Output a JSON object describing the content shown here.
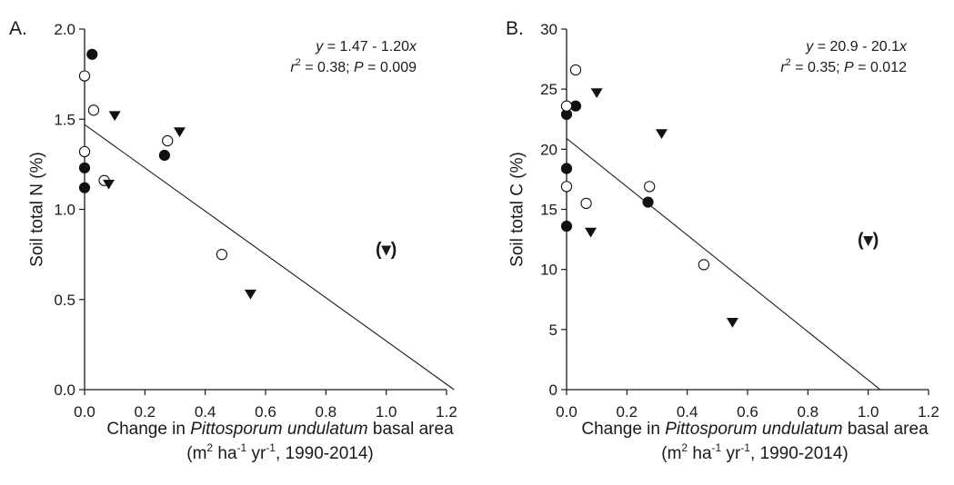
{
  "chart_data": [
    {
      "type": "scatter",
      "panel_label": "A.",
      "ylabel": "Soil total N (%)",
      "xlabel_parts": [
        {
          "text": "Change in ",
          "style": "normal"
        },
        {
          "text": "Pittosporum undulatum",
          "style": "italic"
        },
        {
          "text": " basal area",
          "style": "normal"
        }
      ],
      "xlabel_line2": {
        "pre": "(m",
        "sup1": "2",
        "mid1": " ha",
        "sup2": "-1",
        "mid2": " yr",
        "sup3": "-1",
        "post": ", 1990-2014)"
      },
      "xlim": [
        0,
        1.2
      ],
      "ylim": [
        0,
        2.0
      ],
      "xticks": [
        "0.0",
        "0.2",
        "0.4",
        "0.6",
        "0.8",
        "1.0",
        "1.2"
      ],
      "xtick_values": [
        0,
        0.2,
        0.4,
        0.6,
        0.8,
        1.0,
        1.2
      ],
      "yticks": [
        "0.0",
        "0.5",
        "1.0",
        "1.5",
        "2.0"
      ],
      "ytick_values": [
        0,
        0.5,
        1.0,
        1.5,
        2.0
      ],
      "equation": {
        "y": "y",
        "rhs": " = 1.47 - 1.20",
        "x": "x"
      },
      "stats": {
        "r": "r",
        "sup": "2",
        "rest": " = 0.38; ",
        "P": "P",
        "pval": " = 0.009"
      },
      "fit_line": {
        "intercept": 1.47,
        "slope": -1.2,
        "x_range": [
          0,
          1.225
        ]
      },
      "series": [
        {
          "marker": "filled-circle",
          "points": [
            [
              0.025,
              1.86
            ],
            [
              0.0,
              1.23
            ],
            [
              0.0,
              1.12
            ],
            [
              0.265,
              1.3
            ]
          ]
        },
        {
          "marker": "open-circle",
          "points": [
            [
              0.0,
              1.74
            ],
            [
              0.03,
              1.55
            ],
            [
              0.0,
              1.32
            ],
            [
              0.065,
              1.16
            ],
            [
              0.275,
              1.38
            ],
            [
              0.455,
              0.75
            ]
          ]
        },
        {
          "marker": "filled-triangle",
          "points": [
            [
              0.1,
              1.52
            ],
            [
              0.08,
              1.14
            ],
            [
              0.315,
              1.43
            ],
            [
              0.55,
              0.53
            ]
          ]
        },
        {
          "marker": "filled-triangle-excluded",
          "label": "(▾)",
          "points": [
            [
              1.0,
              0.78
            ]
          ]
        }
      ]
    },
    {
      "type": "scatter",
      "panel_label": "B.",
      "ylabel": "Soil total C (%)",
      "xlabel_parts": [
        {
          "text": "Change in ",
          "style": "normal"
        },
        {
          "text": "Pittosporum undulatum",
          "style": "italic"
        },
        {
          "text": " basal area",
          "style": "normal"
        }
      ],
      "xlabel_line2": {
        "pre": "(m",
        "sup1": "2",
        "mid1": " ha",
        "sup2": "-1",
        "mid2": " yr",
        "sup3": "-1",
        "post": ", 1990-2014)"
      },
      "xlim": [
        0,
        1.2
      ],
      "ylim": [
        0,
        30
      ],
      "xticks": [
        "0.0",
        "0.2",
        "0.4",
        "0.6",
        "0.8",
        "1.0",
        "1.2"
      ],
      "xtick_values": [
        0,
        0.2,
        0.4,
        0.6,
        0.8,
        1.0,
        1.2
      ],
      "yticks": [
        "0",
        "5",
        "10",
        "15",
        "20",
        "25",
        "30"
      ],
      "ytick_values": [
        0,
        5,
        10,
        15,
        20,
        25,
        30
      ],
      "equation": {
        "y": "y",
        "rhs": " = 20.9 - 20.1",
        "x": "x"
      },
      "stats": {
        "r": "r",
        "sup": "2",
        "rest": " = 0.35; ",
        "P": "P",
        "pval": " = 0.012"
      },
      "fit_line": {
        "intercept": 20.9,
        "slope": -20.1,
        "x_range": [
          0,
          1.04
        ]
      },
      "series": [
        {
          "marker": "filled-circle",
          "points": [
            [
              0.0,
              22.9
            ],
            [
              0.03,
              23.6
            ],
            [
              0.0,
              18.4
            ],
            [
              0.0,
              13.6
            ],
            [
              0.27,
              15.6
            ]
          ]
        },
        {
          "marker": "open-circle",
          "points": [
            [
              0.03,
              26.6
            ],
            [
              0.0,
              23.6
            ],
            [
              0.0,
              16.9
            ],
            [
              0.065,
              15.5
            ],
            [
              0.275,
              16.9
            ],
            [
              0.455,
              10.4
            ]
          ]
        },
        {
          "marker": "filled-triangle",
          "points": [
            [
              0.1,
              24.7
            ],
            [
              0.08,
              13.1
            ],
            [
              0.315,
              21.3
            ],
            [
              0.55,
              5.6
            ]
          ]
        },
        {
          "marker": "filled-triangle-excluded",
          "label": "(▾)",
          "points": [
            [
              1.0,
              12.5
            ]
          ]
        }
      ]
    }
  ]
}
